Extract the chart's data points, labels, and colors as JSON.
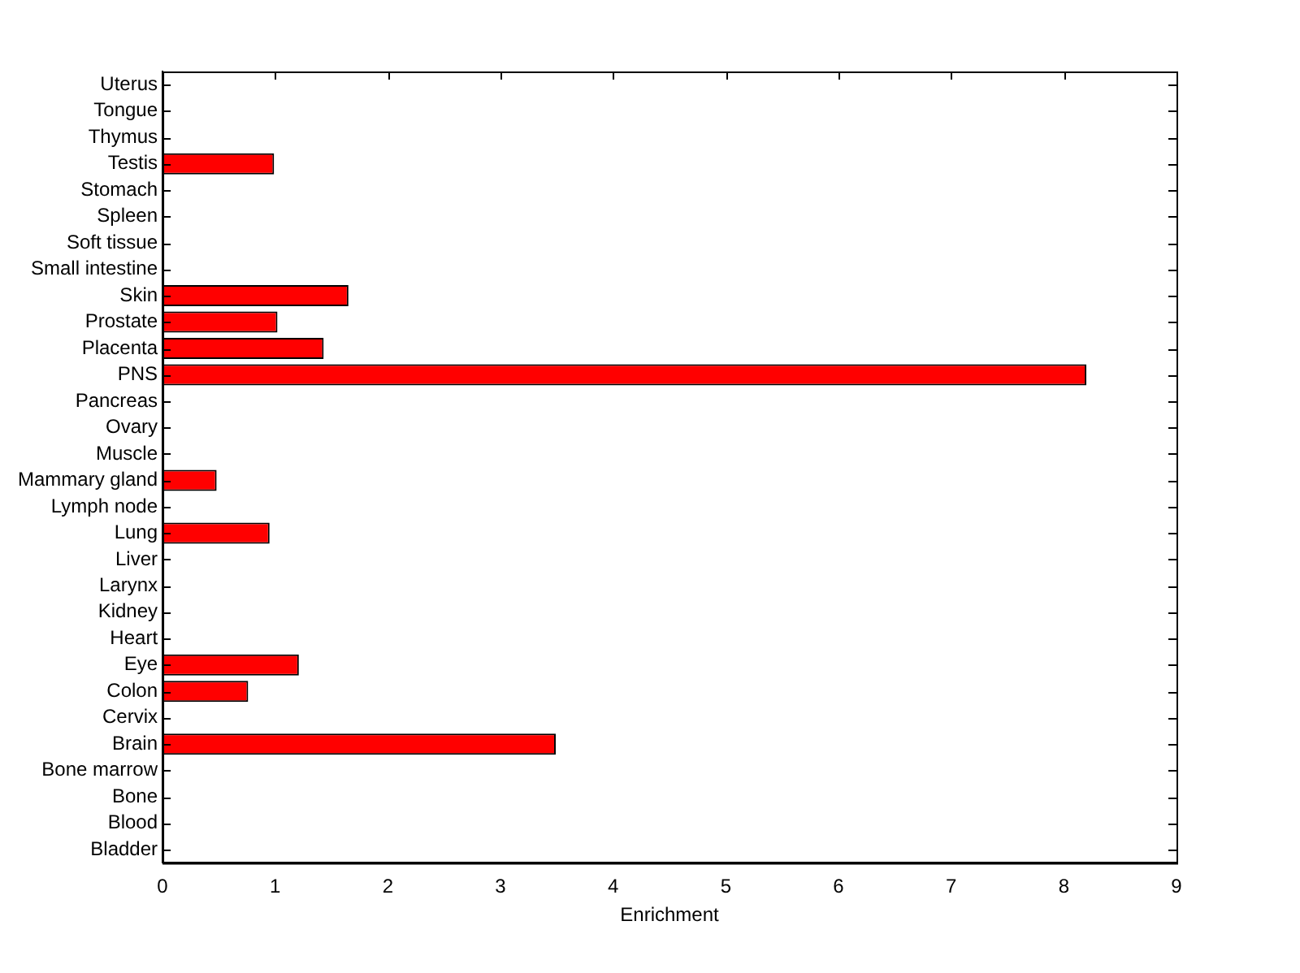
{
  "chart_data": {
    "type": "bar",
    "orientation": "horizontal",
    "xlabel": "Enrichment",
    "categories": [
      "Uterus",
      "Tongue",
      "Thymus",
      "Testis",
      "Stomach",
      "Spleen",
      "Soft tissue",
      "Small intestine",
      "Skin",
      "Prostate",
      "Placenta",
      "PNS",
      "Pancreas",
      "Ovary",
      "Muscle",
      "Mammary gland",
      "Lymph node",
      "Lung",
      "Liver",
      "Larynx",
      "Kidney",
      "Heart",
      "Eye",
      "Colon",
      "Cervix",
      "Brain",
      "Bone marrow",
      "Bone",
      "Blood",
      "Bladder"
    ],
    "values": [
      0,
      0,
      0,
      0.99,
      0,
      0,
      0,
      0,
      1.65,
      1.02,
      1.43,
      8.2,
      0,
      0,
      0,
      0.48,
      0,
      0.95,
      0,
      0,
      0,
      0,
      1.21,
      0.76,
      0,
      3.49,
      0,
      0,
      0,
      0
    ],
    "color": "#ff0000",
    "xlim": [
      0,
      9
    ],
    "xticks": [
      0,
      1,
      2,
      3,
      4,
      5,
      6,
      7,
      8,
      9
    ],
    "grid": false,
    "legend": false
  }
}
